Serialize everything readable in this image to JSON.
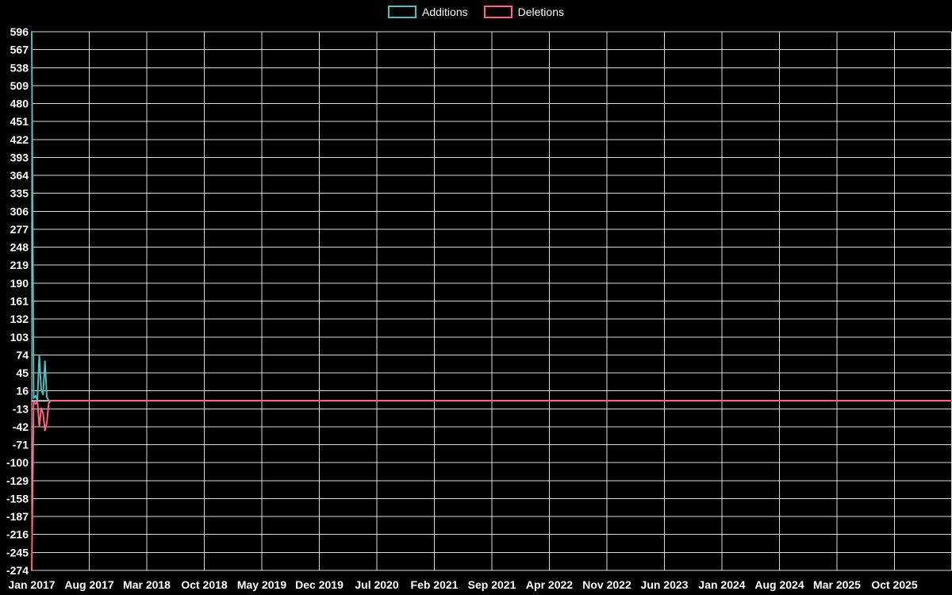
{
  "page": {
    "background": "#000000",
    "text_color": "#ffffff"
  },
  "legend": {
    "items": [
      {
        "label": "Additions",
        "color": "#4bc0c0"
      },
      {
        "label": "Deletions",
        "color": "#ff6384"
      }
    ]
  },
  "chart_data": {
    "type": "line",
    "title": "",
    "background": "#000000",
    "grid": true,
    "grid_color": "rgba(255,255,255,0.85)",
    "legend_position": "top-center",
    "x_axis": {
      "tick_labels": [
        "Jan 2017",
        "Aug 2017",
        "Mar 2018",
        "Oct 2018",
        "May 2019",
        "Dec 2019",
        "Jul 2020",
        "Feb 2021",
        "Sep 2021",
        "Apr 2022",
        "Nov 2022",
        "Jun 2023",
        "Jan 2024",
        "Aug 2024",
        "Mar 2025",
        "Oct 2025"
      ],
      "tick_interval_months": 7,
      "start": "Jan 2017",
      "end": "Oct 2025"
    },
    "y_axis": {
      "min": -274,
      "max": 596,
      "tick_step": 29,
      "tick_labels": [
        596,
        567,
        538,
        509,
        480,
        451,
        422,
        393,
        364,
        335,
        306,
        277,
        248,
        219,
        190,
        161,
        132,
        103,
        74,
        45,
        16,
        -13,
        -42,
        -71,
        -100,
        -129,
        -158,
        -187,
        -216,
        -245,
        -274
      ]
    },
    "zero_line": true,
    "series": [
      {
        "name": "Additions",
        "color": "#4bc0c0",
        "interval": "weekly",
        "start": "Jan 2017",
        "values": [
          596,
          4,
          8,
          2,
          74,
          18,
          10,
          64,
          6,
          0,
          0,
          0
        ],
        "remainder_through_end": 0
      },
      {
        "name": "Deletions",
        "color": "#ff6384",
        "interval": "weekly",
        "start": "Jan 2017",
        "values": [
          -274,
          -2,
          -5,
          -1,
          -42,
          -12,
          -20,
          -48,
          -35,
          -4,
          0,
          0
        ],
        "remainder_through_end": 0
      }
    ]
  }
}
